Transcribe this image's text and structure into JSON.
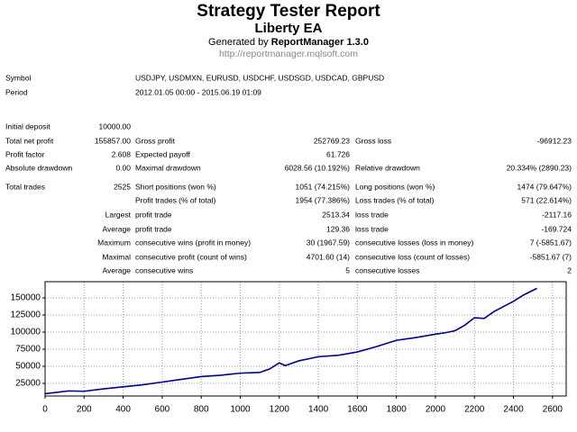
{
  "header": {
    "title": "Strategy Tester Report",
    "subtitle": "Liberty EA",
    "generated_prefix": "Generated by",
    "generator": "ReportManager 1.3.0",
    "url": "http://reportmanager.mqlsoft.com"
  },
  "info": [
    {
      "label": "Symbol",
      "value": "USDJPY, USDMXN, EURUSD, USDCHF, USDSGD, USDCAD, GBPUSD"
    },
    {
      "label": "Period",
      "value": "2012.01.05 00:00 - 2015.06.19 01:09"
    }
  ],
  "stats": [
    [
      "Initial deposit",
      "10000.00",
      null,
      null,
      null,
      null
    ],
    [
      "Total net profit",
      "155857.00",
      "Gross profit",
      "252769.23",
      "Gross loss",
      "-96912.23"
    ],
    [
      "Profit factor",
      "2.608",
      "Expected payoff",
      "61.726",
      null,
      null
    ],
    [
      "Absolute drawdown",
      "0.00",
      "Maximal drawdown",
      "6028.56 (10.192%)",
      "Relative drawdown",
      "20.334% (2890.23)"
    ],
    [
      "Total trades",
      "2525",
      "Short positions (won %)",
      "1051 (74.215%)",
      "Long positions (won %)",
      "1474 (79.647%)"
    ],
    [
      null,
      null,
      "Profit trades (% of total)",
      "1954 (77.386%)",
      "Loss trades (% of total)",
      "571 (22.614%)"
    ],
    [
      null,
      "Largest",
      "profit trade",
      "2513.34",
      "loss trade",
      "-2117.16"
    ],
    [
      null,
      "Average",
      "profit trade",
      "129.36",
      "loss trade",
      "-169.724"
    ],
    [
      null,
      "Maximum",
      "consecutive wins (profit in money)",
      "30 (1967.59)",
      "consecutive losses (loss in money)",
      "7 (-5851.67)"
    ],
    [
      null,
      "Maximal",
      "consecutive profit (count of wins)",
      "4701.60 (14)",
      "consecutive loss (count of losses)",
      "-5851.67 (7)"
    ],
    [
      null,
      "Average",
      "consecutive wins",
      "5",
      "consecutive losses",
      "2"
    ]
  ],
  "chart_data": {
    "type": "line",
    "x": [
      0,
      60,
      120,
      200,
      300,
      400,
      500,
      600,
      700,
      800,
      900,
      1000,
      1100,
      1150,
      1200,
      1230,
      1300,
      1400,
      1500,
      1600,
      1700,
      1800,
      1900,
      2000,
      2050,
      2100,
      2150,
      2200,
      2250,
      2300,
      2400,
      2450,
      2520
    ],
    "series": [
      {
        "color": "#00008b",
        "values": [
          10000,
          12000,
          14000,
          13500,
          17000,
          20000,
          23000,
          27000,
          31000,
          35000,
          37000,
          40000,
          41000,
          46000,
          55000,
          51000,
          58000,
          64000,
          66000,
          71000,
          79000,
          88000,
          92000,
          97000,
          99000,
          102000,
          110000,
          121000,
          120000,
          130000,
          145000,
          154000,
          164000
        ]
      }
    ],
    "xlim": [
      0,
      2670
    ],
    "ylim": [
      6600,
      173700
    ],
    "xticks": [
      0,
      200,
      400,
      600,
      800,
      1000,
      1200,
      1400,
      1600,
      1800,
      2000,
      2200,
      2400,
      2600
    ],
    "yticks": [
      25000,
      50000,
      75000,
      100000,
      125000,
      150000
    ],
    "grid": true
  }
}
